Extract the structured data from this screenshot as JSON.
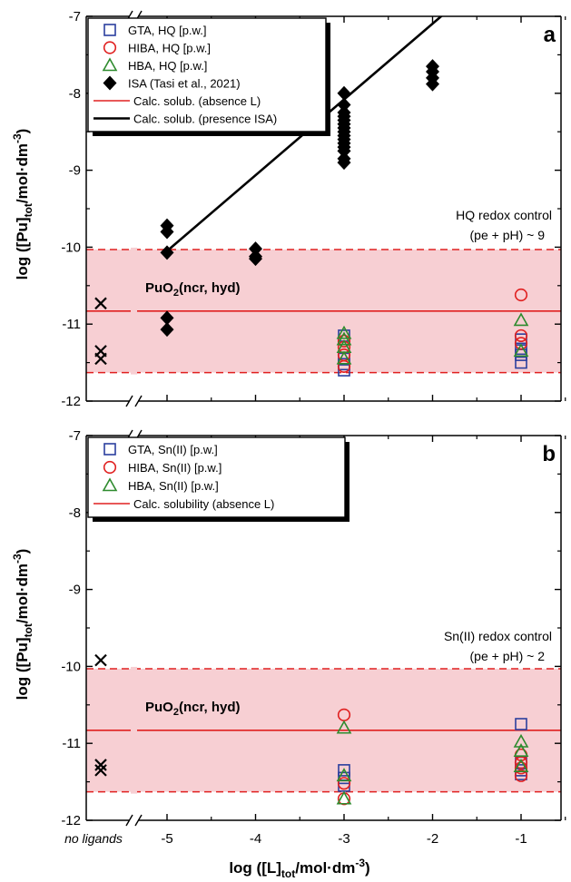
{
  "xaxis": {
    "label_main": "log ([L]",
    "label_sub": "tot",
    "label_rest": "/mol·dm",
    "label_sup": "-3",
    "label_end": ")",
    "ticks": [
      -5,
      -4,
      -3,
      -2,
      -1
    ],
    "tick_labels": [
      "-5",
      "-4",
      "-3",
      "-2",
      "-1"
    ],
    "no_ligands_label": "no ligands"
  },
  "yaxis": {
    "label_main": "log ([Pu]",
    "label_sub": "tot",
    "label_rest": "/mol·dm",
    "label_sup": "-3",
    "label_end": ")",
    "ticks": [
      -7,
      -8,
      -9,
      -10,
      -11,
      -12
    ],
    "tick_labels": [
      "-7",
      "-8",
      "-9",
      "-10",
      "-11",
      "-12"
    ]
  },
  "colors": {
    "gta": "#2b3f9e",
    "hiba": "#e02020",
    "hba": "#2e8b2e",
    "isa": "#000000",
    "band": "#f7cfd3",
    "calc_line": "#e02020",
    "isa_line": "#000000"
  },
  "chart_data": [
    {
      "type": "scatter",
      "panel_label": "a",
      "ylim": [
        -12,
        -7
      ],
      "phase_label_main": "PuO",
      "phase_label_sub": "2",
      "phase_label_rest": "(ncr, hyd)",
      "redox_label_line1": "HQ redox control",
      "redox_label_line2": "(pe + pH) ~ 9",
      "band": {
        "center": -10.83,
        "upper": -10.03,
        "lower": -11.63
      },
      "isa_line": {
        "x": [
          -5.0,
          -1.7
        ],
        "y": [
          -10.05,
          -6.8
        ]
      },
      "legend": [
        {
          "label": "GTA, HQ [p.w.]",
          "marker": "square",
          "color": "#2b3f9e"
        },
        {
          "label": "HIBA, HQ [p.w.]",
          "marker": "circle",
          "color": "#e02020"
        },
        {
          "label": "HBA, HQ [p.w.]",
          "marker": "triangle",
          "color": "#2e8b2e"
        },
        {
          "label": "ISA (Tasi et al., 2021)",
          "marker": "diamond",
          "color": "#000000"
        },
        {
          "label": "Calc. solub. (absence L)",
          "marker": "line",
          "color": "#e02020"
        },
        {
          "label": "Calc. solub. (presence ISA)",
          "marker": "line",
          "color": "#000000"
        }
      ],
      "no_ligand_points": {
        "marker": "x",
        "y": [
          -10.73,
          -11.35,
          -11.45
        ]
      },
      "series": [
        {
          "name": "GTA, HQ [p.w.]",
          "marker": "square",
          "x": [
            -3,
            -3,
            -3,
            -3,
            -1,
            -1,
            -1,
            -1
          ],
          "y": [
            -11.15,
            -11.45,
            -11.52,
            -11.6,
            -11.2,
            -11.32,
            -11.4,
            -11.5
          ]
        },
        {
          "name": "HIBA, HQ [p.w.]",
          "marker": "circle",
          "x": [
            -3,
            -3,
            -3,
            -3,
            -1,
            -1,
            -1
          ],
          "y": [
            -11.22,
            -11.3,
            -11.4,
            -11.55,
            -10.62,
            -11.15,
            -11.25
          ]
        },
        {
          "name": "HBA, HQ [p.w.]",
          "marker": "triangle",
          "x": [
            -3,
            -3,
            -3,
            -3,
            -1,
            -1
          ],
          "y": [
            -11.12,
            -11.2,
            -11.3,
            -11.45,
            -10.95,
            -11.35
          ]
        },
        {
          "name": "ISA (Tasi et al., 2021)",
          "marker": "diamond",
          "x": [
            -5,
            -5,
            -5,
            -5,
            -5,
            -4,
            -4,
            -4,
            -3,
            -3,
            -3,
            -3,
            -3,
            -3,
            -3,
            -3,
            -3,
            -3,
            -3,
            -3,
            -3,
            -3,
            -3,
            -2,
            -2,
            -2,
            -2
          ],
          "y": [
            -9.72,
            -9.8,
            -10.07,
            -10.92,
            -11.07,
            -10.02,
            -10.12,
            -10.15,
            -8.0,
            -8.15,
            -8.25,
            -8.35,
            -8.45,
            -8.5,
            -8.6,
            -8.65,
            -8.7,
            -8.75,
            -8.85,
            -8.9,
            -8.3,
            -8.4,
            -8.55,
            -7.65,
            -7.72,
            -7.8,
            -7.88
          ]
        }
      ]
    },
    {
      "type": "scatter",
      "panel_label": "b",
      "ylim": [
        -12,
        -7
      ],
      "phase_label_main": "PuO",
      "phase_label_sub": "2",
      "phase_label_rest": "(ncr, hyd)",
      "redox_label_line1": "Sn(II) redox control",
      "redox_label_line2": "(pe + pH) ~ 2",
      "band": {
        "center": -10.83,
        "upper": -10.03,
        "lower": -11.63
      },
      "legend": [
        {
          "label": "GTA, Sn(II) [p.w.]",
          "marker": "square",
          "color": "#2b3f9e"
        },
        {
          "label": "HIBA, Sn(II) [p.w.]",
          "marker": "circle",
          "color": "#e02020"
        },
        {
          "label": "HBA, Sn(II) [p.w.]",
          "marker": "triangle",
          "color": "#2e8b2e"
        },
        {
          "label": "Calc. solubility (absence L)",
          "marker": "line",
          "color": "#e02020"
        }
      ],
      "no_ligand_points": {
        "marker": "x",
        "y": [
          -9.92,
          -11.28,
          -11.35
        ]
      },
      "series": [
        {
          "name": "GTA, Sn(II) [p.w.]",
          "marker": "square",
          "x": [
            -3,
            -3,
            -3,
            -1,
            -1,
            -1,
            -1
          ],
          "y": [
            -11.35,
            -11.45,
            -11.55,
            -10.75,
            -11.25,
            -11.35,
            -11.4
          ]
        },
        {
          "name": "HIBA, Sn(II) [p.w.]",
          "marker": "circle",
          "x": [
            -3,
            -3,
            -3,
            -1,
            -1,
            -1,
            -1
          ],
          "y": [
            -10.63,
            -11.52,
            -11.72,
            -11.15,
            -11.25,
            -11.32,
            -11.42
          ]
        },
        {
          "name": "HBA, Sn(II) [p.w.]",
          "marker": "triangle",
          "x": [
            -3,
            -3,
            -3,
            -1,
            -1,
            -1
          ],
          "y": [
            -10.8,
            -11.42,
            -11.72,
            -10.98,
            -11.1,
            -11.3
          ]
        }
      ]
    }
  ]
}
